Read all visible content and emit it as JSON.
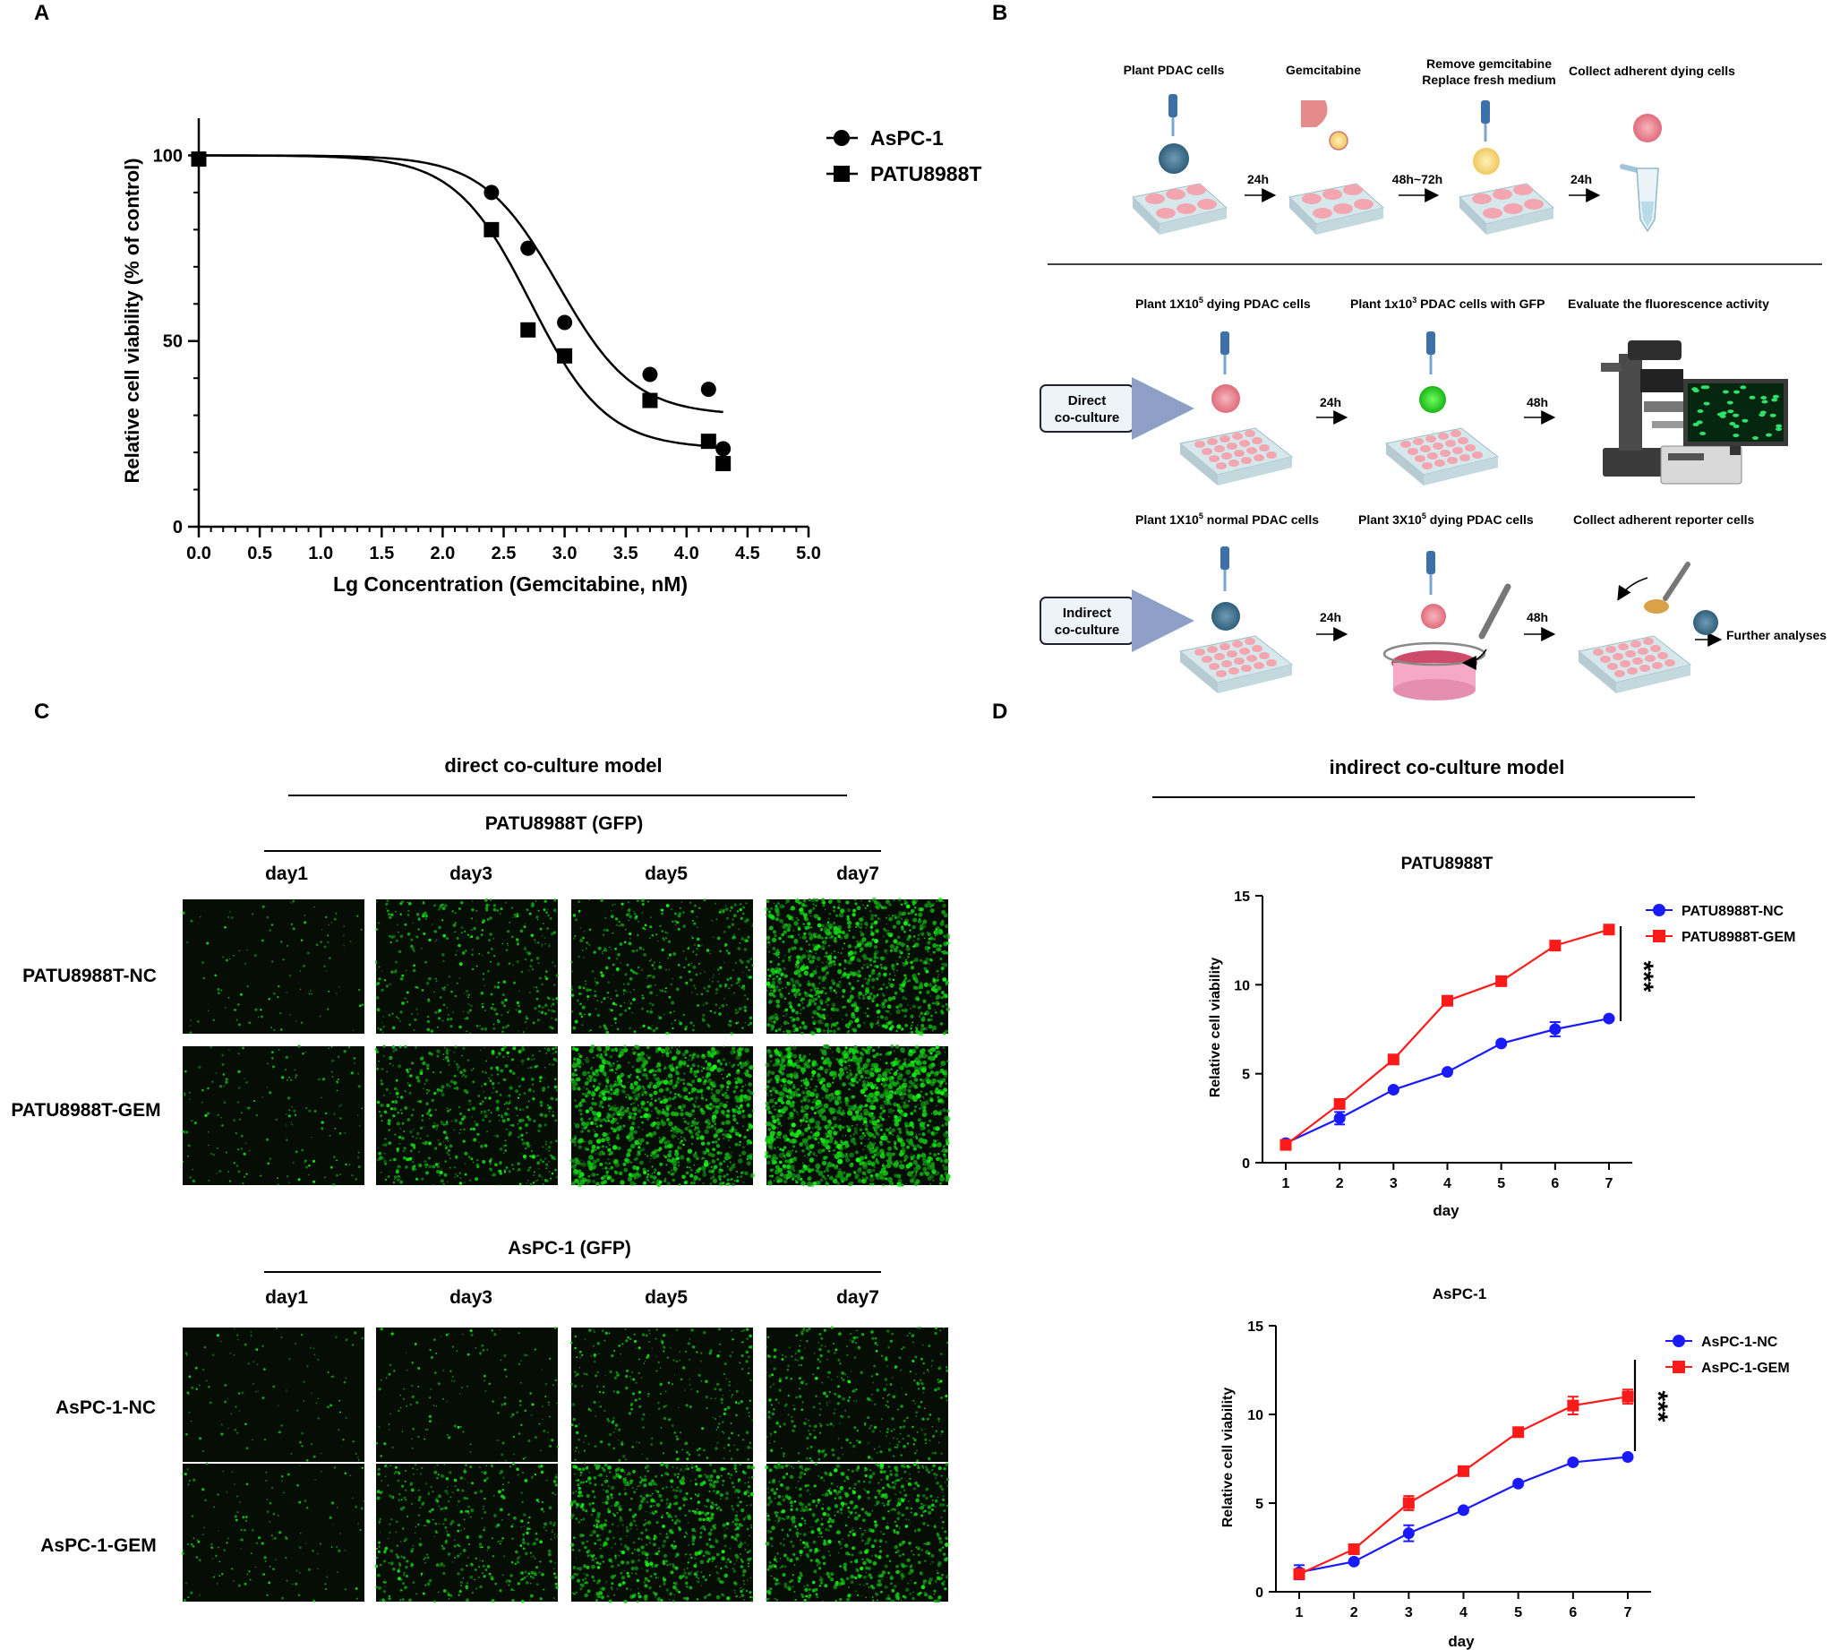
{
  "panels": {
    "A": "A",
    "B": "B",
    "C": "C",
    "D": "D"
  },
  "chart_data": [
    {
      "panel": "A",
      "type": "scatter",
      "xlabel": "Lg Concentration  (Gemcitabine, nM)",
      "ylabel": "Relative cell viability (% of control)",
      "xlim": [
        0,
        5
      ],
      "ylim": [
        0,
        110
      ],
      "x_ticks": [
        "0.0",
        "0.5",
        "1.0",
        "1.5",
        "2.0",
        "2.5",
        "3.0",
        "3.5",
        "4.0",
        "4.5",
        "5.0"
      ],
      "y_ticks": [
        "0",
        "50",
        "100"
      ],
      "legend_position": "top-right",
      "series": [
        {
          "name": "AsPC-1",
          "marker": "circle",
          "points": [
            [
              0,
              99
            ],
            [
              2.4,
              90
            ],
            [
              2.7,
              75
            ],
            [
              3.0,
              55
            ],
            [
              3.7,
              41
            ],
            [
              4.18,
              37
            ],
            [
              4.3,
              21
            ]
          ],
          "fit": {
            "top": 100,
            "bottom": 30,
            "logIC50": 2.95,
            "hill": 1.4
          }
        },
        {
          "name": "PATU8988T",
          "marker": "square",
          "points": [
            [
              0,
              99
            ],
            [
              2.4,
              80
            ],
            [
              2.7,
              53
            ],
            [
              3.0,
              46
            ],
            [
              3.7,
              34
            ],
            [
              4.18,
              23
            ],
            [
              4.3,
              17
            ]
          ],
          "fit": {
            "top": 100,
            "bottom": 21,
            "logIC50": 2.72,
            "hill": 1.4
          }
        }
      ]
    },
    {
      "panel": "D",
      "type": "line",
      "title": "PATU8988T",
      "xlabel": "day",
      "ylabel": "Relative cell viability",
      "x": [
        1,
        2,
        3,
        4,
        5,
        6,
        7
      ],
      "ylim": [
        0,
        15
      ],
      "y_ticks": [
        "0",
        "5",
        "10",
        "15"
      ],
      "legend_position": "top-right",
      "significance": "***",
      "series": [
        {
          "name": "PATU8988T-NC",
          "color": "#1a1aff",
          "marker": "circle",
          "values": [
            1.1,
            2.5,
            4.1,
            5.1,
            6.7,
            7.5,
            8.1
          ],
          "errors": [
            0.1,
            0.35,
            0.1,
            0.1,
            0.1,
            0.4,
            0.1
          ]
        },
        {
          "name": "PATU8988T-GEM",
          "color": "#ff1a1a",
          "marker": "square",
          "values": [
            1.0,
            3.3,
            5.8,
            9.1,
            10.2,
            12.2,
            13.1
          ],
          "errors": [
            0.1,
            0.15,
            0.1,
            0.1,
            0.1,
            0.15,
            0.15
          ]
        }
      ]
    },
    {
      "panel": "D",
      "type": "line",
      "title": "AsPC-1",
      "xlabel": "day",
      "ylabel": "Relative cell viability",
      "x": [
        1,
        2,
        3,
        4,
        5,
        6,
        7
      ],
      "ylim": [
        0,
        15
      ],
      "y_ticks": [
        "0",
        "5",
        "10",
        "15"
      ],
      "legend_position": "top-right",
      "significance": "***",
      "series": [
        {
          "name": "AsPC-1-NC",
          "color": "#1a1aff",
          "marker": "circle",
          "values": [
            1.1,
            1.7,
            3.3,
            4.6,
            6.1,
            7.3,
            7.6
          ],
          "errors": [
            0.4,
            0.1,
            0.45,
            0.1,
            0.1,
            0.1,
            0.1
          ]
        },
        {
          "name": "AsPC-1-GEM",
          "color": "#ff1a1a",
          "marker": "square",
          "values": [
            1.0,
            2.4,
            5.0,
            6.8,
            9.0,
            10.5,
            11.0
          ],
          "errors": [
            0.2,
            0.15,
            0.4,
            0.1,
            0.1,
            0.5,
            0.4
          ]
        }
      ]
    }
  ],
  "panelB": {
    "row1": {
      "steps": [
        "Plant PDAC cells",
        "Gemcitabine",
        "Remove gemcitabine",
        "Replace fresh medium",
        "Collect adherent dying cells"
      ],
      "arrows": [
        "24h",
        "48h~72h",
        "24h"
      ]
    },
    "row2": {
      "box": [
        "Direct",
        "co-culture"
      ],
      "steps": [
        "Plant 1X10",
        "5",
        " dying PDAC cells",
        "Plant 1x10",
        "3",
        "  PDAC cells with GFP",
        "Evaluate the fluorescence activity"
      ],
      "arrows": [
        "24h",
        "48h"
      ]
    },
    "row3": {
      "box": [
        "Indirect",
        "co-culture"
      ],
      "steps": [
        "Plant 1X10",
        "5",
        " normal PDAC cells",
        "Plant 3X10",
        "5",
        " dying PDAC cells",
        "Collect adherent reporter cells",
        "Further analyses"
      ],
      "arrows": [
        "24h",
        "48h"
      ]
    }
  },
  "panelC": {
    "title": "direct co-culture model",
    "groups": [
      {
        "header": "PATU8988T (GFP)",
        "rows": [
          "PATU8988T-NC",
          "PATU8988T-GEM"
        ],
        "density": [
          [
            0.05,
            0.25,
            0.3,
            0.75
          ],
          [
            0.1,
            0.4,
            0.85,
            1.0
          ]
        ]
      },
      {
        "header": "AsPC-1 (GFP)",
        "rows": [
          "AsPC-1-NC",
          "AsPC-1-GEM"
        ],
        "density": [
          [
            0.05,
            0.08,
            0.2,
            0.25
          ],
          [
            0.08,
            0.3,
            0.55,
            0.55
          ]
        ]
      }
    ],
    "days": [
      "day1",
      "day3",
      "day5",
      "day7"
    ]
  },
  "panelD": {
    "title": "indirect co-culture model"
  },
  "colors": {
    "gfp": "#22dd22",
    "nc": "#1a1aff",
    "gem": "#ff1a1a",
    "plate": "#cfe3e8",
    "well": "#f4a6b0"
  }
}
